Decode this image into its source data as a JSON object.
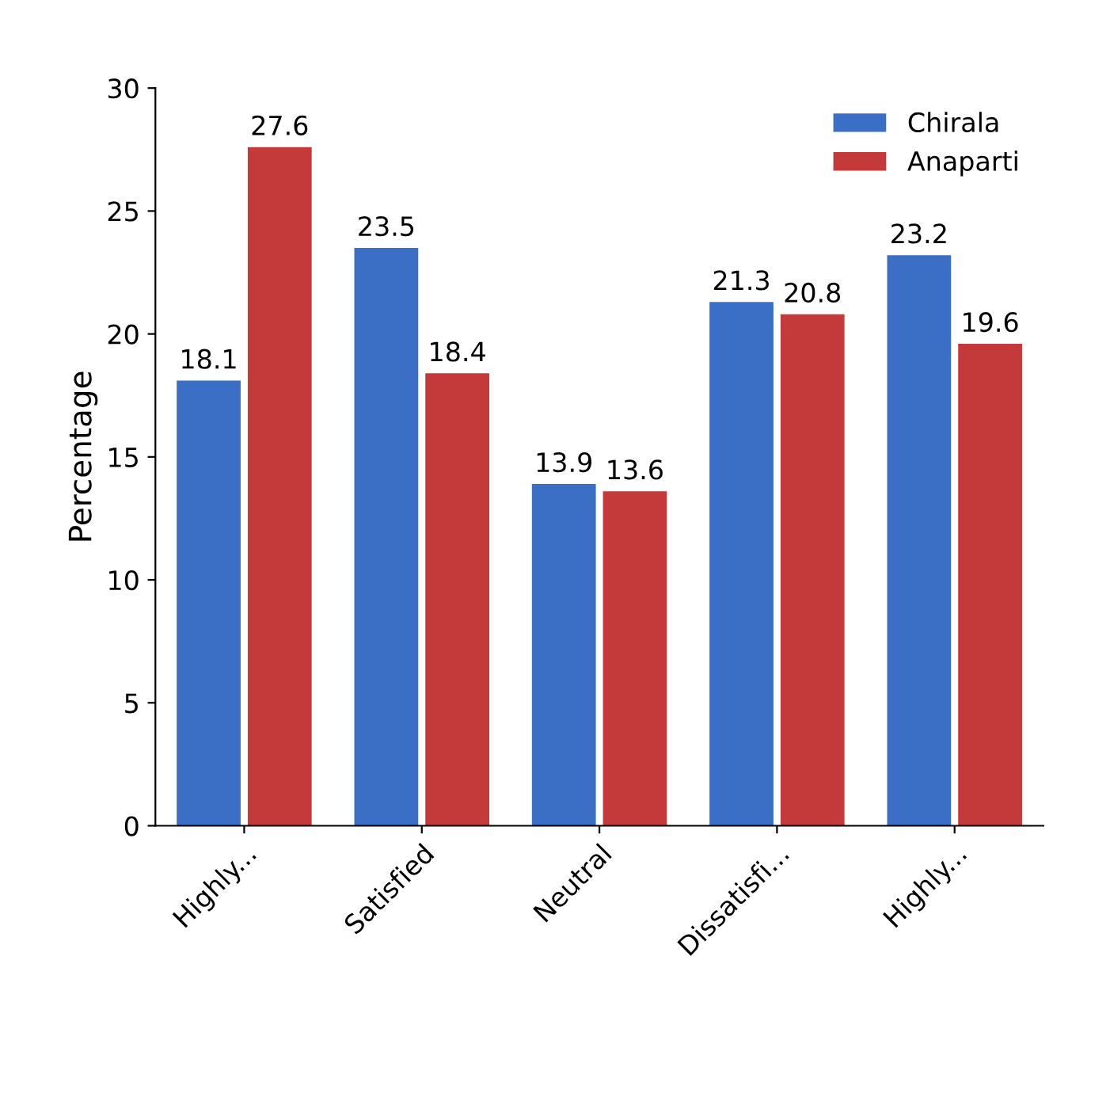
{
  "chart_data": {
    "type": "bar",
    "ylabel": "Percentage",
    "categories": [
      "Highly...",
      "Satisfied",
      "Neutral",
      "Dissatisfi...",
      "Highly..."
    ],
    "series": [
      {
        "name": "Chirala",
        "color": "#3b6fc6",
        "values": [
          18.1,
          23.5,
          13.9,
          21.3,
          23.2
        ]
      },
      {
        "name": "Anaparti",
        "color": "#c43a3a",
        "values": [
          27.6,
          18.4,
          13.6,
          20.8,
          19.6
        ]
      }
    ],
    "ylim": [
      0,
      30
    ],
    "yticks": [
      0,
      5,
      10,
      15,
      20,
      25,
      30
    ],
    "grid": false,
    "legend": "top right",
    "data_labels": true
  }
}
